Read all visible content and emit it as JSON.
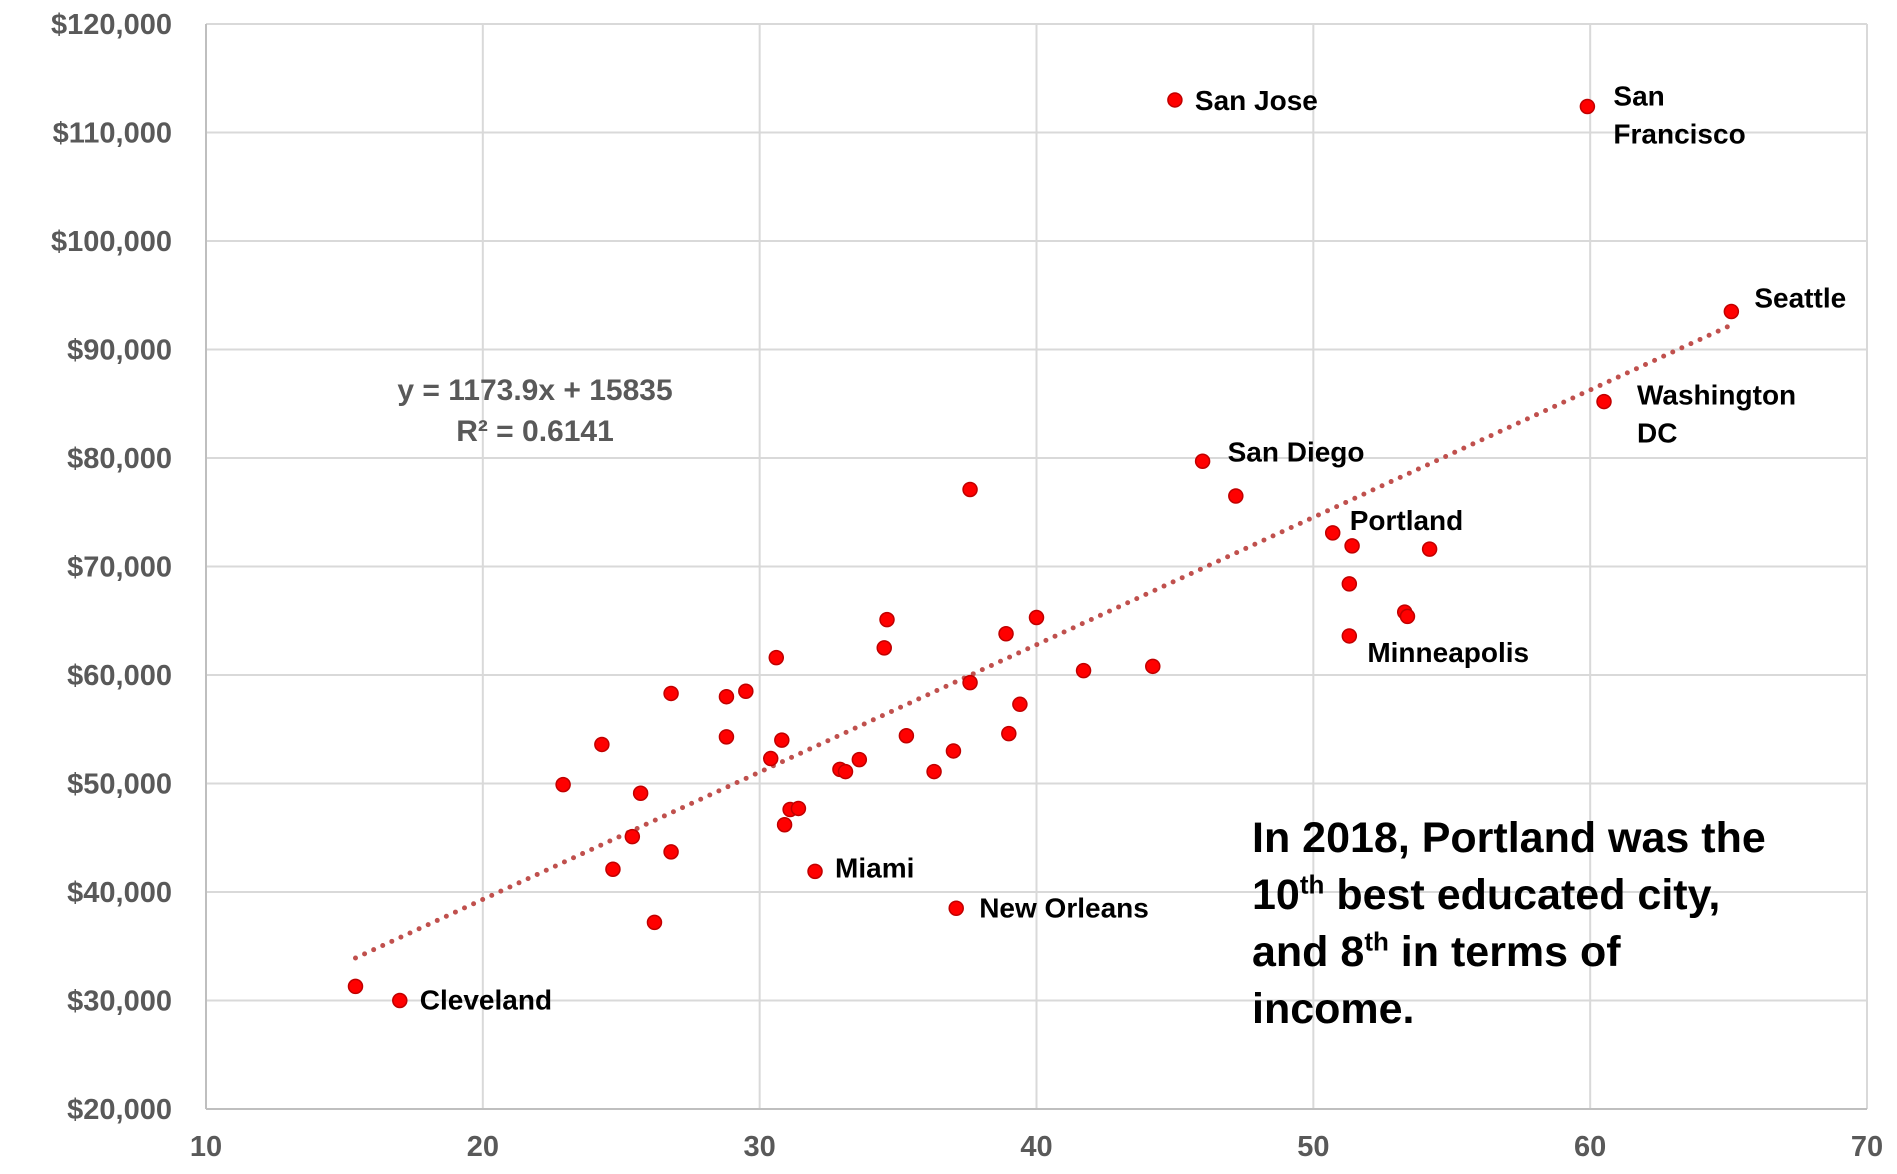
{
  "chart_data": {
    "type": "scatter",
    "title": "",
    "xlabel": "",
    "ylabel": "",
    "xlim": [
      10,
      70
    ],
    "ylim": [
      20000,
      120000
    ],
    "x_ticks": [
      10,
      20,
      30,
      40,
      50,
      60,
      70
    ],
    "y_ticks": [
      20000,
      30000,
      40000,
      50000,
      60000,
      70000,
      80000,
      90000,
      100000,
      110000,
      120000
    ],
    "x_tick_labels": [
      "10",
      "20",
      "30",
      "40",
      "50",
      "60",
      "70"
    ],
    "y_tick_labels": [
      "$20,000",
      "$30,000",
      "$40,000",
      "$50,000",
      "$60,000",
      "$70,000",
      "$80,000",
      "$90,000",
      "$100,000",
      "$110,000",
      "$120,000"
    ],
    "grid": true,
    "marker_color": "#ff0000",
    "marker_edge_color": "#c00000",
    "trendline_color": "#c0504d",
    "points": [
      {
        "x": 45.0,
        "y": 113000,
        "label": "San Jose"
      },
      {
        "x": 59.9,
        "y": 112400,
        "label": "San Francisco"
      },
      {
        "x": 65.1,
        "y": 93500,
        "label": "Seattle"
      },
      {
        "x": 60.5,
        "y": 85200,
        "label": "Washington DC"
      },
      {
        "x": 46.0,
        "y": 79700,
        "label": "San Diego"
      },
      {
        "x": 50.7,
        "y": 73100,
        "label": "Portland"
      },
      {
        "x": 51.3,
        "y": 63600,
        "label": "Minneapolis"
      },
      {
        "x": 32.0,
        "y": 41900,
        "label": "Miami"
      },
      {
        "x": 37.1,
        "y": 38500,
        "label": "New Orleans"
      },
      {
        "x": 17.0,
        "y": 30000,
        "label": "Cleveland"
      },
      {
        "x": 15.4,
        "y": 31300
      },
      {
        "x": 47.2,
        "y": 76500
      },
      {
        "x": 37.6,
        "y": 77100
      },
      {
        "x": 51.4,
        "y": 71900
      },
      {
        "x": 54.2,
        "y": 71600
      },
      {
        "x": 51.3,
        "y": 68400
      },
      {
        "x": 53.3,
        "y": 65800
      },
      {
        "x": 53.4,
        "y": 65400
      },
      {
        "x": 34.6,
        "y": 65100
      },
      {
        "x": 40.0,
        "y": 65300
      },
      {
        "x": 38.9,
        "y": 63800
      },
      {
        "x": 34.5,
        "y": 62500
      },
      {
        "x": 30.6,
        "y": 61600
      },
      {
        "x": 44.2,
        "y": 60800
      },
      {
        "x": 41.7,
        "y": 60400
      },
      {
        "x": 37.6,
        "y": 59300
      },
      {
        "x": 29.5,
        "y": 58500
      },
      {
        "x": 28.8,
        "y": 58000
      },
      {
        "x": 26.8,
        "y": 58300
      },
      {
        "x": 39.4,
        "y": 57300
      },
      {
        "x": 39.0,
        "y": 54600
      },
      {
        "x": 35.3,
        "y": 54400
      },
      {
        "x": 28.8,
        "y": 54300
      },
      {
        "x": 30.8,
        "y": 54000
      },
      {
        "x": 24.3,
        "y": 53600
      },
      {
        "x": 37.0,
        "y": 53000
      },
      {
        "x": 30.4,
        "y": 52300
      },
      {
        "x": 33.6,
        "y": 52200
      },
      {
        "x": 32.9,
        "y": 51300
      },
      {
        "x": 33.1,
        "y": 51100
      },
      {
        "x": 36.3,
        "y": 51100
      },
      {
        "x": 22.9,
        "y": 49900
      },
      {
        "x": 25.7,
        "y": 49100
      },
      {
        "x": 31.1,
        "y": 47600
      },
      {
        "x": 31.4,
        "y": 47700
      },
      {
        "x": 30.9,
        "y": 46200
      },
      {
        "x": 25.4,
        "y": 45100
      },
      {
        "x": 26.8,
        "y": 43700
      },
      {
        "x": 24.7,
        "y": 42100
      },
      {
        "x": 26.2,
        "y": 37200
      }
    ],
    "trendline": {
      "slope": 1173.9,
      "intercept": 15835,
      "x_range": [
        15.4,
        65.1
      ],
      "equation": "y = 1173.9x + 15835",
      "r_squared": "R² = 0.6141"
    }
  },
  "note": {
    "line1": "In 2018, Portland was the",
    "line2_num": "10",
    "line2_sup": "th",
    "line2_rest": " best educated city,",
    "line3_pre": "and 8",
    "line3_sup": "th",
    "line3_rest": " in terms of",
    "line4": "income."
  }
}
